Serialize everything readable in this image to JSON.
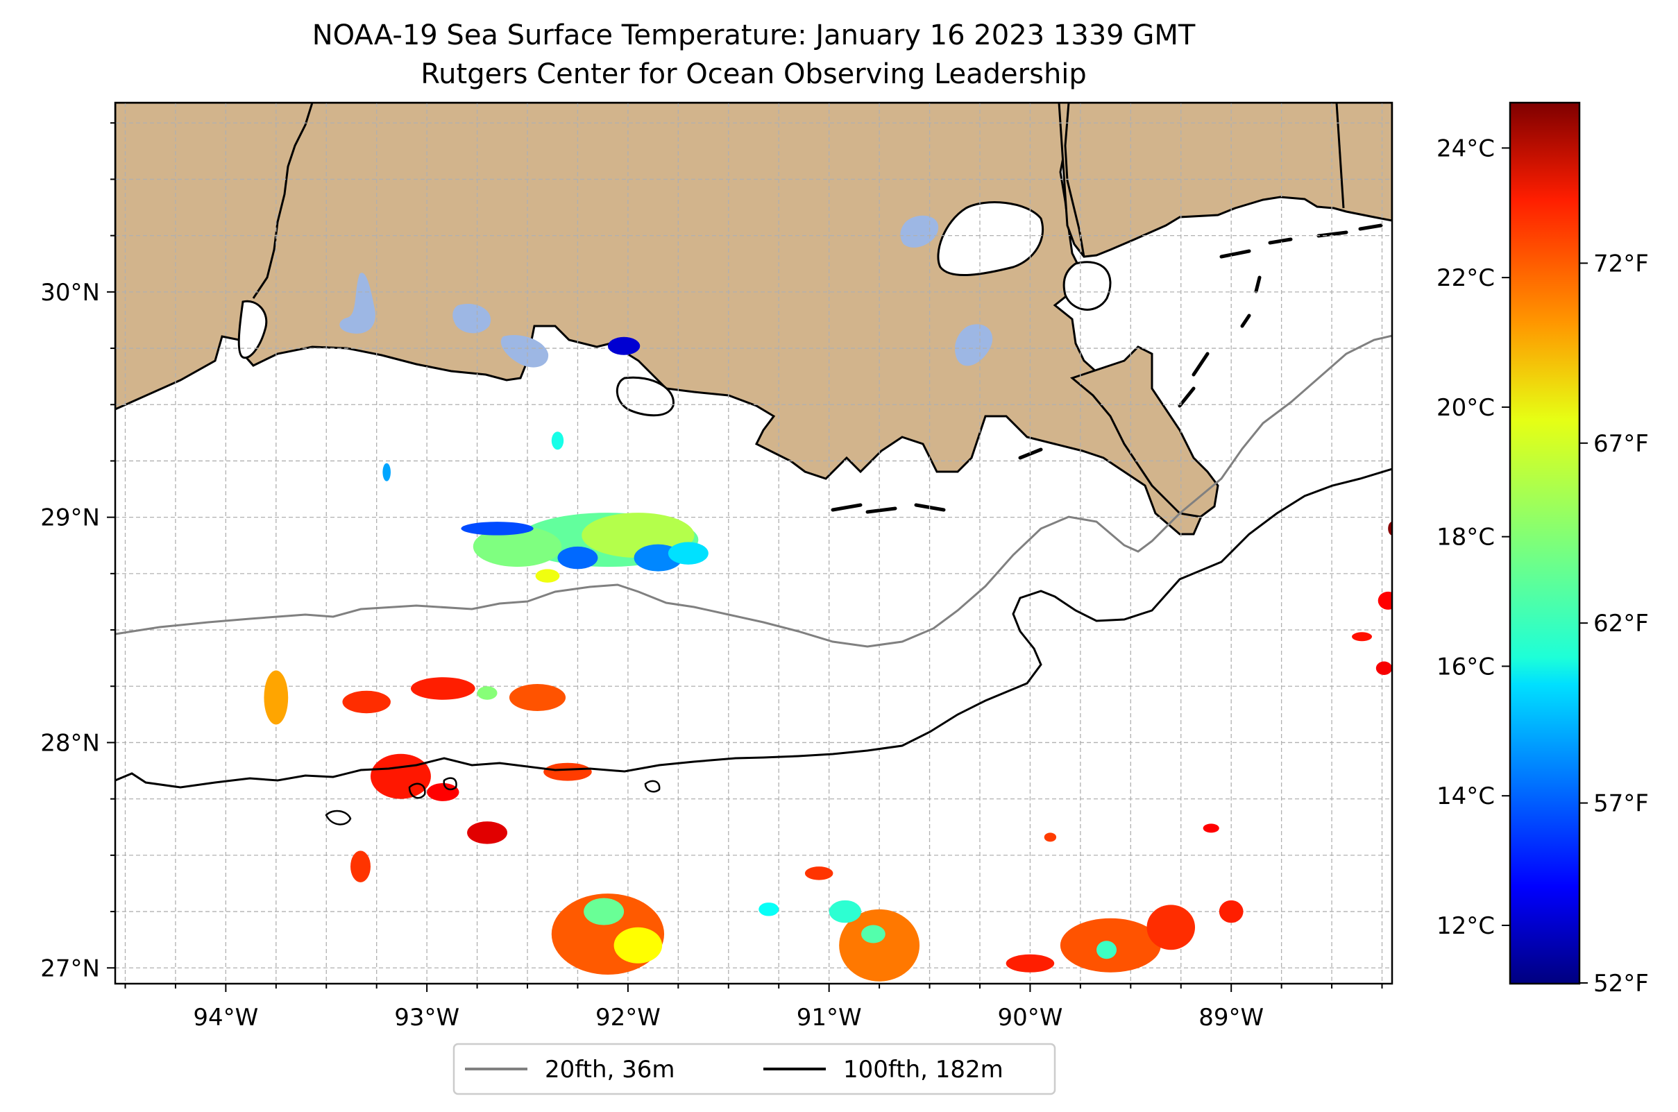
{
  "title": "NOAA-19 Sea Surface Temperature: January 16 2023 1339 GMT",
  "subtitle": "Rutgers Center for Ocean Observing Leadership",
  "map": {
    "lon_range": [
      -94.55,
      -88.2
    ],
    "lat_range": [
      26.93,
      30.84
    ],
    "lon_ticks": [
      {
        "value": -94,
        "label": "94°W"
      },
      {
        "value": -93,
        "label": "93°W"
      },
      {
        "value": -92,
        "label": "92°W"
      },
      {
        "value": -91,
        "label": "91°W"
      },
      {
        "value": -90,
        "label": "90°W"
      },
      {
        "value": -89,
        "label": "89°W"
      }
    ],
    "lat_ticks": [
      {
        "value": 30,
        "label": "30°N"
      },
      {
        "value": 29,
        "label": "29°N"
      },
      {
        "value": 28,
        "label": "28°N"
      },
      {
        "value": 27,
        "label": "27°N"
      }
    ],
    "grid": true,
    "land_color": "#d2b48c",
    "lake_color": "#9db7e4",
    "ocean_color": "#ffffff"
  },
  "colorbar": {
    "colormap": "jet",
    "range_c": [
      11.1,
      24.7
    ],
    "celsius_ticks": [
      {
        "value": 24,
        "label": "24°C"
      },
      {
        "value": 22,
        "label": "22°C"
      },
      {
        "value": 20,
        "label": "20°C"
      },
      {
        "value": 18,
        "label": "18°C"
      },
      {
        "value": 16,
        "label": "16°C"
      },
      {
        "value": 14,
        "label": "14°C"
      },
      {
        "value": 12,
        "label": "12°C"
      }
    ],
    "fahrenheit_ticks": [
      {
        "value": 72,
        "label": "72°F"
      },
      {
        "value": 67,
        "label": "67°F"
      },
      {
        "value": 62,
        "label": "62°F"
      },
      {
        "value": 57,
        "label": "57°F"
      },
      {
        "value": 52,
        "label": "52°F"
      }
    ]
  },
  "legend": {
    "placement": "bottom-center",
    "items": [
      {
        "label": "20fth, 36m",
        "color": "#808080"
      },
      {
        "label": "100fth, 182m",
        "color": "#000000"
      }
    ]
  },
  "chart_data": {
    "type": "heatmap",
    "variable": "sea surface temperature (°C)",
    "patches": [
      {
        "lon": -92.1,
        "lat": 28.9,
        "rlon": 0.45,
        "rlat": 0.12,
        "temp": 17.5
      },
      {
        "lon": -91.95,
        "lat": 28.92,
        "rlon": 0.28,
        "rlat": 0.1,
        "temp": 18.6
      },
      {
        "lon": -92.55,
        "lat": 28.87,
        "rlon": 0.22,
        "rlat": 0.09,
        "temp": 17.9
      },
      {
        "lon": -92.65,
        "lat": 28.95,
        "rlon": 0.18,
        "rlat": 0.03,
        "temp": 13.8
      },
      {
        "lon": -91.85,
        "lat": 28.82,
        "rlon": 0.12,
        "rlat": 0.06,
        "temp": 14.6
      },
      {
        "lon": -92.25,
        "lat": 28.82,
        "rlon": 0.1,
        "rlat": 0.05,
        "temp": 14.2
      },
      {
        "lon": -91.7,
        "lat": 28.84,
        "rlon": 0.1,
        "rlat": 0.05,
        "temp": 15.8
      },
      {
        "lon": -92.4,
        "lat": 28.74,
        "rlon": 0.06,
        "rlat": 0.03,
        "temp": 19.4
      },
      {
        "lon": -92.02,
        "lat": 29.76,
        "rlon": 0.08,
        "rlat": 0.04,
        "temp": 12.2
      },
      {
        "lon": -92.35,
        "lat": 29.34,
        "rlon": 0.03,
        "rlat": 0.04,
        "temp": 16.5
      },
      {
        "lon": -93.2,
        "lat": 29.2,
        "rlon": 0.02,
        "rlat": 0.04,
        "temp": 15.0
      },
      {
        "lon": -93.75,
        "lat": 28.2,
        "rlon": 0.06,
        "rlat": 0.12,
        "temp": 20.8
      },
      {
        "lon": -93.3,
        "lat": 28.18,
        "rlon": 0.12,
        "rlat": 0.05,
        "temp": 22.4
      },
      {
        "lon": -92.92,
        "lat": 28.24,
        "rlon": 0.16,
        "rlat": 0.05,
        "temp": 22.6
      },
      {
        "lon": -92.45,
        "lat": 28.2,
        "rlon": 0.14,
        "rlat": 0.06,
        "temp": 21.9
      },
      {
        "lon": -92.7,
        "lat": 28.22,
        "rlon": 0.05,
        "rlat": 0.03,
        "temp": 18.0
      },
      {
        "lon": -93.13,
        "lat": 27.85,
        "rlon": 0.15,
        "rlat": 0.1,
        "temp": 22.7
      },
      {
        "lon": -92.92,
        "lat": 27.78,
        "rlon": 0.08,
        "rlat": 0.04,
        "temp": 23.0
      },
      {
        "lon": -92.7,
        "lat": 27.6,
        "rlon": 0.1,
        "rlat": 0.05,
        "temp": 23.4
      },
      {
        "lon": -93.33,
        "lat": 27.45,
        "rlon": 0.05,
        "rlat": 0.07,
        "temp": 22.3
      },
      {
        "lon": -92.3,
        "lat": 27.87,
        "rlon": 0.12,
        "rlat": 0.04,
        "temp": 22.2
      },
      {
        "lon": -92.1,
        "lat": 27.15,
        "rlon": 0.28,
        "rlat": 0.18,
        "temp": 21.8
      },
      {
        "lon": -92.12,
        "lat": 27.25,
        "rlon": 0.1,
        "rlat": 0.06,
        "temp": 17.6
      },
      {
        "lon": -91.95,
        "lat": 27.1,
        "rlon": 0.12,
        "rlat": 0.08,
        "temp": 19.6
      },
      {
        "lon": -90.75,
        "lat": 27.1,
        "rlon": 0.2,
        "rlat": 0.16,
        "temp": 21.4
      },
      {
        "lon": -90.78,
        "lat": 27.15,
        "rlon": 0.06,
        "rlat": 0.04,
        "temp": 17.3
      },
      {
        "lon": -90.92,
        "lat": 27.25,
        "rlon": 0.08,
        "rlat": 0.05,
        "temp": 16.8
      },
      {
        "lon": -91.05,
        "lat": 27.42,
        "rlon": 0.07,
        "rlat": 0.03,
        "temp": 22.3
      },
      {
        "lon": -91.3,
        "lat": 27.26,
        "rlon": 0.05,
        "rlat": 0.03,
        "temp": 16.3
      },
      {
        "lon": -89.6,
        "lat": 27.1,
        "rlon": 0.25,
        "rlat": 0.12,
        "temp": 21.9
      },
      {
        "lon": -89.62,
        "lat": 27.08,
        "rlon": 0.05,
        "rlat": 0.04,
        "temp": 17.0
      },
      {
        "lon": -89.3,
        "lat": 27.18,
        "rlon": 0.12,
        "rlat": 0.1,
        "temp": 22.4
      },
      {
        "lon": -89.0,
        "lat": 27.25,
        "rlon": 0.06,
        "rlat": 0.05,
        "temp": 22.6
      },
      {
        "lon": -90.0,
        "lat": 27.02,
        "rlon": 0.12,
        "rlat": 0.04,
        "temp": 22.6
      },
      {
        "lon": -88.35,
        "lat": 28.47,
        "rlon": 0.05,
        "rlat": 0.02,
        "temp": 22.8
      },
      {
        "lon": -88.22,
        "lat": 28.63,
        "rlon": 0.05,
        "rlat": 0.04,
        "temp": 23.0
      },
      {
        "lon": -88.24,
        "lat": 28.33,
        "rlon": 0.04,
        "rlat": 0.03,
        "temp": 23.1
      },
      {
        "lon": -88.2,
        "lat": 28.95,
        "rlon": 0.02,
        "rlat": 0.03,
        "temp": 24.6
      },
      {
        "lon": -89.1,
        "lat": 27.62,
        "rlon": 0.04,
        "rlat": 0.02,
        "temp": 23.0
      },
      {
        "lon": -89.9,
        "lat": 27.58,
        "rlon": 0.03,
        "rlat": 0.02,
        "temp": 22.2
      }
    ]
  }
}
